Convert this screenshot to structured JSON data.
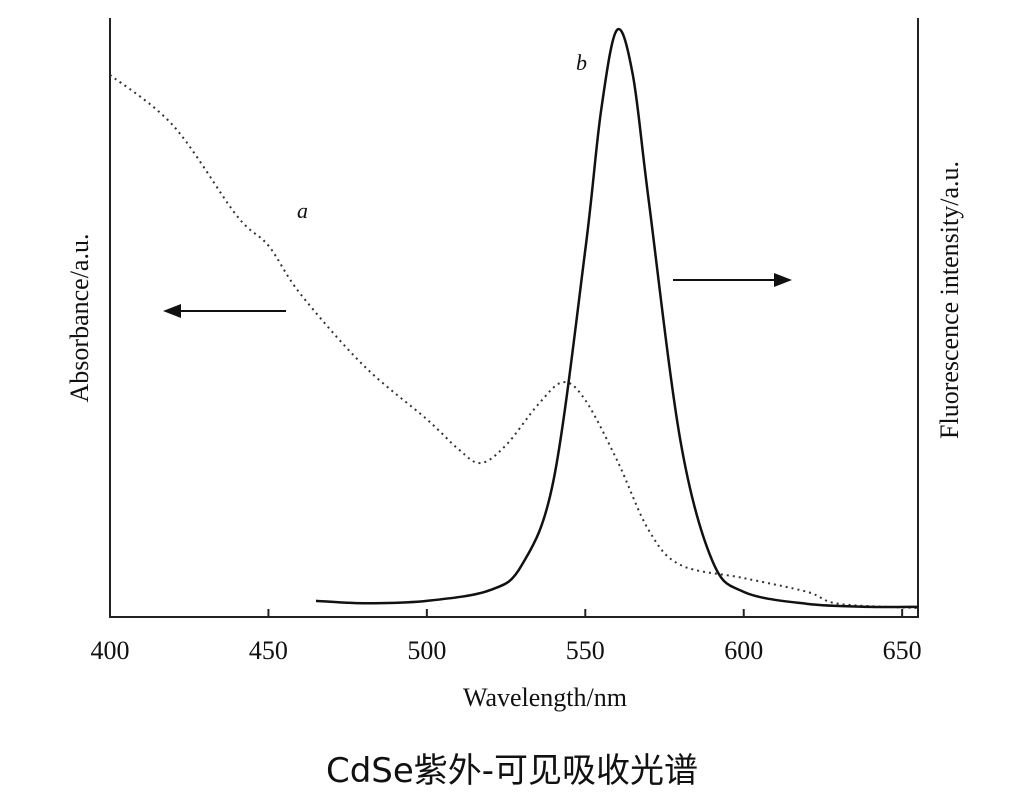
{
  "chart_data": {
    "type": "line",
    "title": "CdSe紫外-可见吸收光谱",
    "x_label": "Wavelength/nm",
    "y_label": "Absorbance/a.u.",
    "y2_label": "Fluorescence intensity/a.u.",
    "xlim": [
      400,
      655
    ],
    "xticks": [
      400,
      450,
      500,
      550,
      600,
      650
    ],
    "ylim": [
      0,
      100
    ],
    "y2lim": [
      0,
      100
    ],
    "series": [
      {
        "name": "a",
        "color": "#333333",
        "dashed": true,
        "x": [
          400,
          420,
          440,
          450,
          460,
          480,
          500,
          510,
          517,
          525,
          535,
          543,
          550,
          560,
          570,
          580,
          600,
          620,
          630,
          655
        ],
        "values": [
          90.5,
          82,
          67,
          62,
          54,
          42,
          33,
          28,
          25.7,
          28.7,
          35.4,
          39.2,
          36.2,
          26.2,
          14.5,
          8.7,
          6.5,
          4.2,
          2.2,
          1.5
        ]
      },
      {
        "name": "b",
        "color": "#111111",
        "dashed": false,
        "axis": "y2",
        "x": [
          465,
          480,
          500,
          520,
          530,
          540,
          550,
          555,
          560,
          565,
          570,
          580,
          590,
          600,
          620,
          640,
          655
        ],
        "values": [
          2.7,
          2.3,
          2.7,
          4.5,
          8.7,
          22.9,
          61.3,
          84.6,
          98,
          90.5,
          69.6,
          29.5,
          9.5,
          4.2,
          2.2,
          1.7,
          1.7
        ]
      }
    ]
  }
}
